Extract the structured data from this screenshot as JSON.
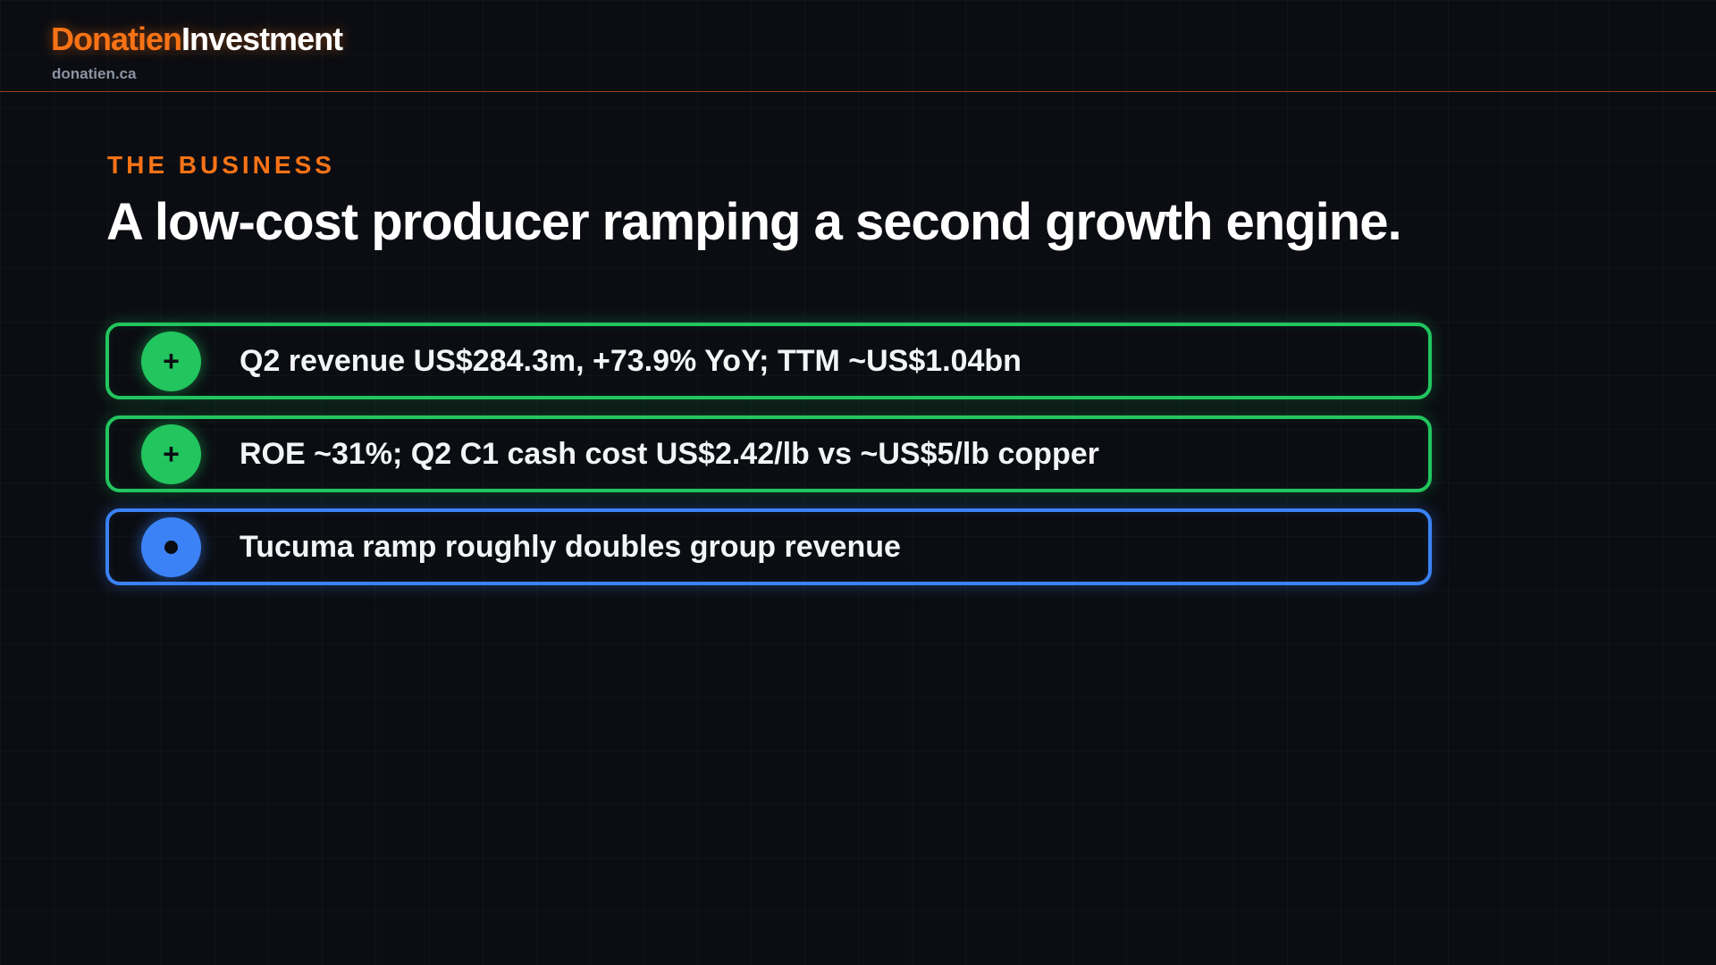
{
  "brand": {
    "name_part1": "Donatien",
    "name_part2": "Investment",
    "site": "donatien.ca",
    "accent_color": "#f97316"
  },
  "slide": {
    "eyebrow": "THE BUSINESS",
    "headline": "A low-cost producer ramping a second growth engine."
  },
  "items": [
    {
      "badge_icon": "plus-icon",
      "badge_symbol": "+",
      "text": "Q2 revenue US$284.3m, +73.9% YoY; TTM ~US$1.04bn",
      "color": "#22c55e"
    },
    {
      "badge_icon": "plus-icon",
      "badge_symbol": "+",
      "text": "ROE ~31%; Q2 C1 cash cost US$2.42/lb vs ~US$5/lb copper",
      "color": "#22c55e"
    },
    {
      "badge_icon": "dot-icon",
      "text": "Tucuma ramp roughly doubles group revenue",
      "color": "#3b82f6"
    }
  ]
}
